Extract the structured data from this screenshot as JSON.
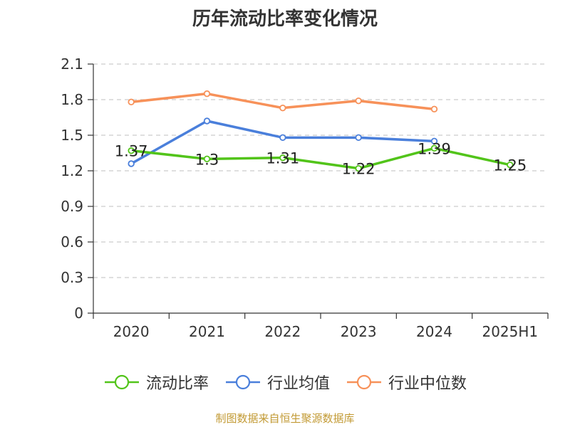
{
  "chart_data": {
    "type": "line",
    "title": "历年流动比率变化情况",
    "categories": [
      "2020",
      "2021",
      "2022",
      "2023",
      "2024",
      "2025H1"
    ],
    "yticks": [
      "0",
      "0.3",
      "0.6",
      "0.9",
      "1.2",
      "1.5",
      "1.8",
      "2.1"
    ],
    "ylim": [
      0,
      2.1
    ],
    "grid": true,
    "legend_position": "bottom",
    "series": [
      {
        "name": "流动比率",
        "color": "#52c41a",
        "values": [
          1.37,
          1.3,
          1.31,
          1.22,
          1.39,
          1.25
        ],
        "labels": [
          "1.37",
          "1.3",
          "1.31",
          "1.22",
          "1.39",
          "1.25"
        ]
      },
      {
        "name": "行业均值",
        "color": "#4a7fdb",
        "values": [
          1.26,
          1.62,
          1.48,
          1.48,
          1.45,
          null
        ]
      },
      {
        "name": "行业中位数",
        "color": "#f79159",
        "values": [
          1.78,
          1.85,
          1.73,
          1.79,
          1.72,
          null
        ]
      }
    ]
  },
  "source": "制图数据来自恒生聚源数据库"
}
